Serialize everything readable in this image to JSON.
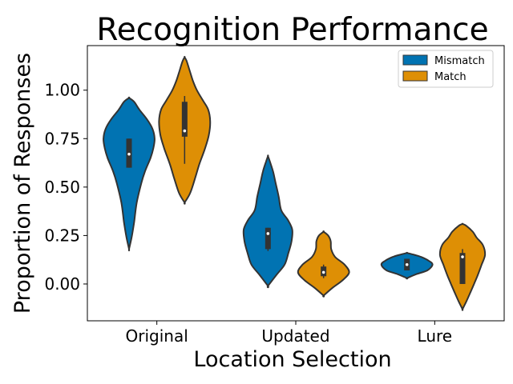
{
  "chart_data": {
    "type": "violin",
    "title": "Recognition Performance",
    "xlabel": "Location Selection",
    "ylabel": "Proportion of Responses",
    "categories": [
      "Original",
      "Updated",
      "Lure"
    ],
    "ylim": [
      -0.19,
      1.23
    ],
    "yticks": [
      0.0,
      0.25,
      0.5,
      0.75,
      1.0
    ],
    "ytick_labels": [
      "0.00",
      "0.25",
      "0.50",
      "0.75",
      "1.00"
    ],
    "legend": {
      "position": "top-right",
      "entries": [
        "Mismatch",
        "Match"
      ]
    },
    "series": [
      {
        "name": "Mismatch",
        "color": "#0173b2",
        "violins": [
          {
            "category": "Original",
            "min": 0.18,
            "max": 0.96,
            "q1": 0.6,
            "median": 0.67,
            "q3": 0.75,
            "whisker_low": 0.6,
            "whisker_high": 0.75,
            "profile": [
              [
                0.18,
                0.0
              ],
              [
                0.24,
                0.1
              ],
              [
                0.32,
                0.2
              ],
              [
                0.42,
                0.3
              ],
              [
                0.52,
                0.48
              ],
              [
                0.58,
                0.62
              ],
              [
                0.65,
                0.84
              ],
              [
                0.7,
                0.95
              ],
              [
                0.75,
                1.0
              ],
              [
                0.8,
                0.92
              ],
              [
                0.85,
                0.7
              ],
              [
                0.9,
                0.4
              ],
              [
                0.94,
                0.2
              ],
              [
                0.96,
                0.0
              ]
            ]
          },
          {
            "category": "Updated",
            "min": -0.01,
            "max": 0.66,
            "q1": 0.18,
            "median": 0.26,
            "q3": 0.29,
            "whisker_low": 0.17,
            "whisker_high": 0.29,
            "profile": [
              [
                -0.01,
                0.0
              ],
              [
                0.05,
                0.35
              ],
              [
                0.1,
                0.65
              ],
              [
                0.16,
                0.8
              ],
              [
                0.22,
                0.92
              ],
              [
                0.28,
                0.95
              ],
              [
                0.33,
                0.78
              ],
              [
                0.38,
                0.52
              ],
              [
                0.45,
                0.42
              ],
              [
                0.52,
                0.3
              ],
              [
                0.58,
                0.2
              ],
              [
                0.63,
                0.08
              ],
              [
                0.66,
                0.0
              ]
            ]
          },
          {
            "category": "Lure",
            "min": 0.03,
            "max": 0.16,
            "q1": 0.07,
            "median": 0.1,
            "q3": 0.13,
            "whisker_low": 0.07,
            "whisker_high": 0.13,
            "profile": [
              [
                0.03,
                0.0
              ],
              [
                0.05,
                0.35
              ],
              [
                0.07,
                0.8
              ],
              [
                0.1,
                1.0
              ],
              [
                0.12,
                0.85
              ],
              [
                0.14,
                0.55
              ],
              [
                0.15,
                0.3
              ],
              [
                0.16,
                0.0
              ]
            ]
          }
        ]
      },
      {
        "name": "Match",
        "color": "#de8f05",
        "violins": [
          {
            "category": "Original",
            "min": 0.42,
            "max": 1.17,
            "q1": 0.76,
            "median": 0.79,
            "q3": 0.94,
            "whisker_low": 0.62,
            "whisker_high": 0.97,
            "profile": [
              [
                0.42,
                0.0
              ],
              [
                0.47,
                0.22
              ],
              [
                0.55,
                0.42
              ],
              [
                0.62,
                0.58
              ],
              [
                0.7,
                0.8
              ],
              [
                0.77,
                0.95
              ],
              [
                0.84,
                1.0
              ],
              [
                0.9,
                0.92
              ],
              [
                0.95,
                0.7
              ],
              [
                1.0,
                0.48
              ],
              [
                1.05,
                0.32
              ],
              [
                1.1,
                0.2
              ],
              [
                1.15,
                0.08
              ],
              [
                1.17,
                0.0
              ]
            ]
          },
          {
            "category": "Updated",
            "min": -0.06,
            "max": 0.27,
            "q1": 0.04,
            "median": 0.06,
            "q3": 0.09,
            "whisker_low": 0.03,
            "whisker_high": 0.1,
            "profile": [
              [
                -0.06,
                0.0
              ],
              [
                -0.02,
                0.35
              ],
              [
                0.02,
                0.75
              ],
              [
                0.06,
                1.0
              ],
              [
                0.1,
                0.82
              ],
              [
                0.14,
                0.45
              ],
              [
                0.18,
                0.3
              ],
              [
                0.22,
                0.28
              ],
              [
                0.25,
                0.18
              ],
              [
                0.27,
                0.0
              ]
            ]
          },
          {
            "category": "Lure",
            "min": -0.13,
            "max": 0.31,
            "q1": 0.0,
            "median": 0.14,
            "q3": 0.16,
            "whisker_low": 0.0,
            "whisker_high": 0.18,
            "profile": [
              [
                -0.13,
                0.0
              ],
              [
                -0.09,
                0.15
              ],
              [
                -0.04,
                0.32
              ],
              [
                0.0,
                0.45
              ],
              [
                0.04,
                0.58
              ],
              [
                0.1,
                0.75
              ],
              [
                0.15,
                0.88
              ],
              [
                0.2,
                0.8
              ],
              [
                0.24,
                0.55
              ],
              [
                0.27,
                0.4
              ],
              [
                0.3,
                0.15
              ],
              [
                0.31,
                0.0
              ]
            ]
          }
        ]
      }
    ]
  }
}
